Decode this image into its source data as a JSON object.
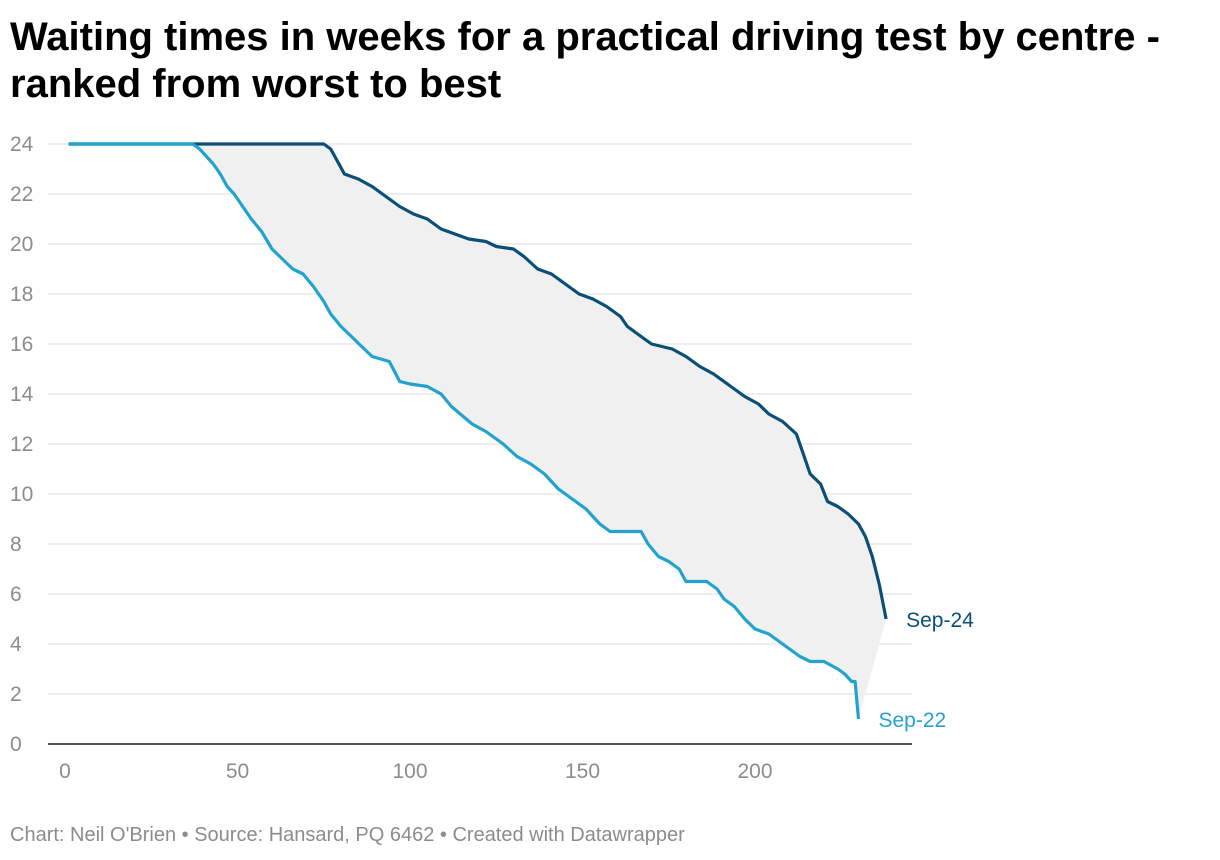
{
  "chart_data": {
    "type": "line",
    "title": "Waiting times in weeks for a practical driving test by centre - ranked from worst to best",
    "xlabel": "",
    "ylabel": "",
    "xlim": [
      0,
      245
    ],
    "ylim": [
      0,
      24
    ],
    "x_ticks": [
      "0",
      "50",
      "100",
      "150",
      "200"
    ],
    "y_ticks": [
      "0",
      "2",
      "4",
      "6",
      "8",
      "10",
      "12",
      "14",
      "16",
      "18",
      "20",
      "22",
      "24"
    ],
    "grid": true,
    "area_between_series": true,
    "series": [
      {
        "name": "Sep-24",
        "color": "#0a4f75",
        "points": [
          [
            1,
            24
          ],
          [
            75,
            24
          ],
          [
            77,
            23.8
          ],
          [
            79,
            23.3
          ],
          [
            81,
            22.8
          ],
          [
            85,
            22.6
          ],
          [
            89,
            22.3
          ],
          [
            93,
            21.9
          ],
          [
            97,
            21.5
          ],
          [
            101,
            21.2
          ],
          [
            105,
            21.0
          ],
          [
            109,
            20.6
          ],
          [
            113,
            20.4
          ],
          [
            117,
            20.2
          ],
          [
            122,
            20.1
          ],
          [
            125,
            19.9
          ],
          [
            130,
            19.8
          ],
          [
            133,
            19.5
          ],
          [
            137,
            19.0
          ],
          [
            141,
            18.8
          ],
          [
            145,
            18.4
          ],
          [
            149,
            18.0
          ],
          [
            153,
            17.8
          ],
          [
            157,
            17.5
          ],
          [
            161,
            17.1
          ],
          [
            163,
            16.7
          ],
          [
            167,
            16.3
          ],
          [
            170,
            16.0
          ],
          [
            176,
            15.8
          ],
          [
            180,
            15.5
          ],
          [
            184,
            15.1
          ],
          [
            188,
            14.8
          ],
          [
            193,
            14.3
          ],
          [
            197,
            13.9
          ],
          [
            201,
            13.6
          ],
          [
            204,
            13.2
          ],
          [
            208,
            12.9
          ],
          [
            212,
            12.4
          ],
          [
            214,
            11.6
          ],
          [
            216,
            10.8
          ],
          [
            219,
            10.4
          ],
          [
            221,
            9.7
          ],
          [
            224,
            9.5
          ],
          [
            227,
            9.2
          ],
          [
            230,
            8.8
          ],
          [
            232,
            8.3
          ],
          [
            234,
            7.5
          ],
          [
            236,
            6.4
          ],
          [
            238,
            5.0
          ]
        ]
      },
      {
        "name": "Sep-22",
        "color": "#22a3cf",
        "points": [
          [
            1,
            24
          ],
          [
            37,
            24
          ],
          [
            39,
            23.8
          ],
          [
            41,
            23.5
          ],
          [
            43,
            23.2
          ],
          [
            45,
            22.8
          ],
          [
            47,
            22.3
          ],
          [
            49,
            22.0
          ],
          [
            51,
            21.6
          ],
          [
            54,
            21.0
          ],
          [
            57,
            20.5
          ],
          [
            60,
            19.8
          ],
          [
            63,
            19.4
          ],
          [
            66,
            19.0
          ],
          [
            69,
            18.8
          ],
          [
            72,
            18.3
          ],
          [
            75,
            17.7
          ],
          [
            77,
            17.2
          ],
          [
            80,
            16.7
          ],
          [
            83,
            16.3
          ],
          [
            86,
            15.9
          ],
          [
            89,
            15.5
          ],
          [
            94,
            15.3
          ],
          [
            97,
            14.5
          ],
          [
            100,
            14.4
          ],
          [
            105,
            14.3
          ],
          [
            109,
            14.0
          ],
          [
            112,
            13.5
          ],
          [
            118,
            12.8
          ],
          [
            122,
            12.5
          ],
          [
            127,
            12.0
          ],
          [
            131,
            11.5
          ],
          [
            135,
            11.2
          ],
          [
            139,
            10.8
          ],
          [
            143,
            10.2
          ],
          [
            147,
            9.8
          ],
          [
            151,
            9.4
          ],
          [
            155,
            8.8
          ],
          [
            158,
            8.5
          ],
          [
            167,
            8.5
          ],
          [
            169,
            8.0
          ],
          [
            172,
            7.5
          ],
          [
            175,
            7.3
          ],
          [
            178,
            7.0
          ],
          [
            180,
            6.5
          ],
          [
            186,
            6.5
          ],
          [
            189,
            6.2
          ],
          [
            191,
            5.8
          ],
          [
            194,
            5.5
          ],
          [
            197,
            5.0
          ],
          [
            200,
            4.6
          ],
          [
            204,
            4.4
          ],
          [
            207,
            4.1
          ],
          [
            210,
            3.8
          ],
          [
            213,
            3.5
          ],
          [
            216,
            3.3
          ],
          [
            220,
            3.3
          ],
          [
            224,
            3.0
          ],
          [
            226,
            2.8
          ],
          [
            228,
            2.5
          ],
          [
            229,
            2.5
          ],
          [
            230,
            1.0
          ]
        ]
      }
    ]
  },
  "footer": "Chart: Neil O'Brien • Source: Hansard, PQ 6462 • Created with Datawrapper"
}
